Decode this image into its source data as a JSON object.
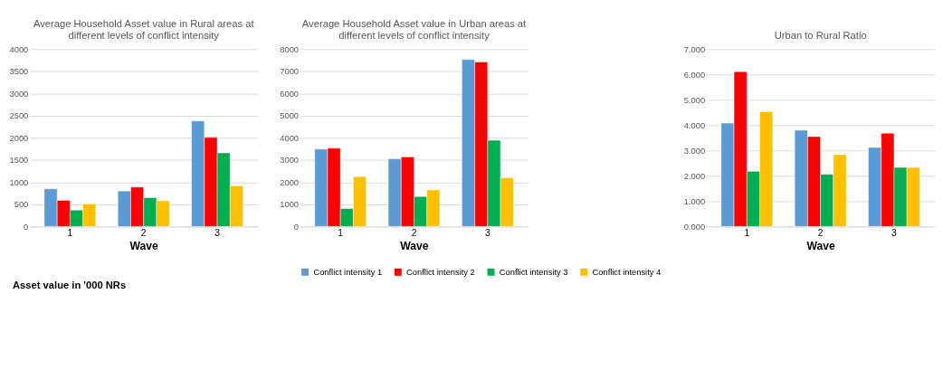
{
  "chart_data": [
    {
      "type": "bar",
      "title": "Average Household Asset value in Rural areas at different levels of conflict intensity",
      "xlabel": "Wave",
      "categories": [
        "1",
        "2",
        "3"
      ],
      "series": [
        {
          "color": "#5b9bd5",
          "values": [
            850,
            800,
            2380
          ]
        },
        {
          "color": "#ff0000",
          "values": [
            590,
            890,
            2010
          ]
        },
        {
          "color": "#00b050",
          "values": [
            370,
            650,
            1660
          ]
        },
        {
          "color": "#ffc000",
          "values": [
            510,
            580,
            920
          ]
        }
      ],
      "ylim": [
        0,
        4000
      ],
      "yticks": [
        0,
        500,
        1000,
        1500,
        2000,
        2500,
        3000,
        3500,
        4000
      ],
      "grid": "y",
      "legend": false,
      "annotations": [
        "Asset value in '000 NRs"
      ]
    },
    {
      "type": "bar",
      "title": "Average Household Asset value in Urban areas at different levels of conflict intensity",
      "xlabel": "Wave",
      "categories": [
        "1",
        "2",
        "3"
      ],
      "series": [
        {
          "name": "Conflict intensity 1",
          "color": "#5b9bd5",
          "values": [
            3490,
            3050,
            7530
          ]
        },
        {
          "name": "Conflict intensity 2",
          "color": "#ff0000",
          "values": [
            3530,
            3140,
            7420
          ]
        },
        {
          "name": "Conflict intensity 3",
          "color": "#00b050",
          "values": [
            810,
            1350,
            3890
          ]
        },
        {
          "name": "Conflict intensity 4",
          "color": "#ffc000",
          "values": [
            2250,
            1650,
            2200
          ]
        }
      ],
      "ylim": [
        0,
        8000
      ],
      "yticks": [
        0,
        1000,
        2000,
        3000,
        4000,
        5000,
        6000,
        7000,
        8000
      ],
      "grid": "y",
      "legend": "bottom"
    },
    {
      "type": "bar",
      "title": "Urban to Rural Ratio",
      "xlabel": "Wave",
      "categories": [
        "1",
        "2",
        "3"
      ],
      "series": [
        {
          "color": "#5b9bd5",
          "values": [
            4.08,
            3.8,
            3.12
          ]
        },
        {
          "color": "#ff0000",
          "values": [
            6.11,
            3.55,
            3.68
          ]
        },
        {
          "color": "#00b050",
          "values": [
            2.18,
            2.06,
            2.33
          ]
        },
        {
          "color": "#ffc000",
          "values": [
            4.53,
            2.84,
            2.33
          ]
        }
      ],
      "ylim": [
        0,
        7
      ],
      "yticks": [
        {
          "value": 0,
          "label": "0.000"
        },
        {
          "value": 1,
          "label": "1.000"
        },
        {
          "value": 2,
          "label": "2.000"
        },
        {
          "value": 3,
          "label": "3.000"
        },
        {
          "value": 4,
          "label": "4.000"
        },
        {
          "value": 5,
          "label": "5.000"
        },
        {
          "value": 6,
          "label": "6.000"
        },
        {
          "value": 7,
          "label": "7.000"
        }
      ],
      "grid": "y",
      "legend": false
    }
  ]
}
